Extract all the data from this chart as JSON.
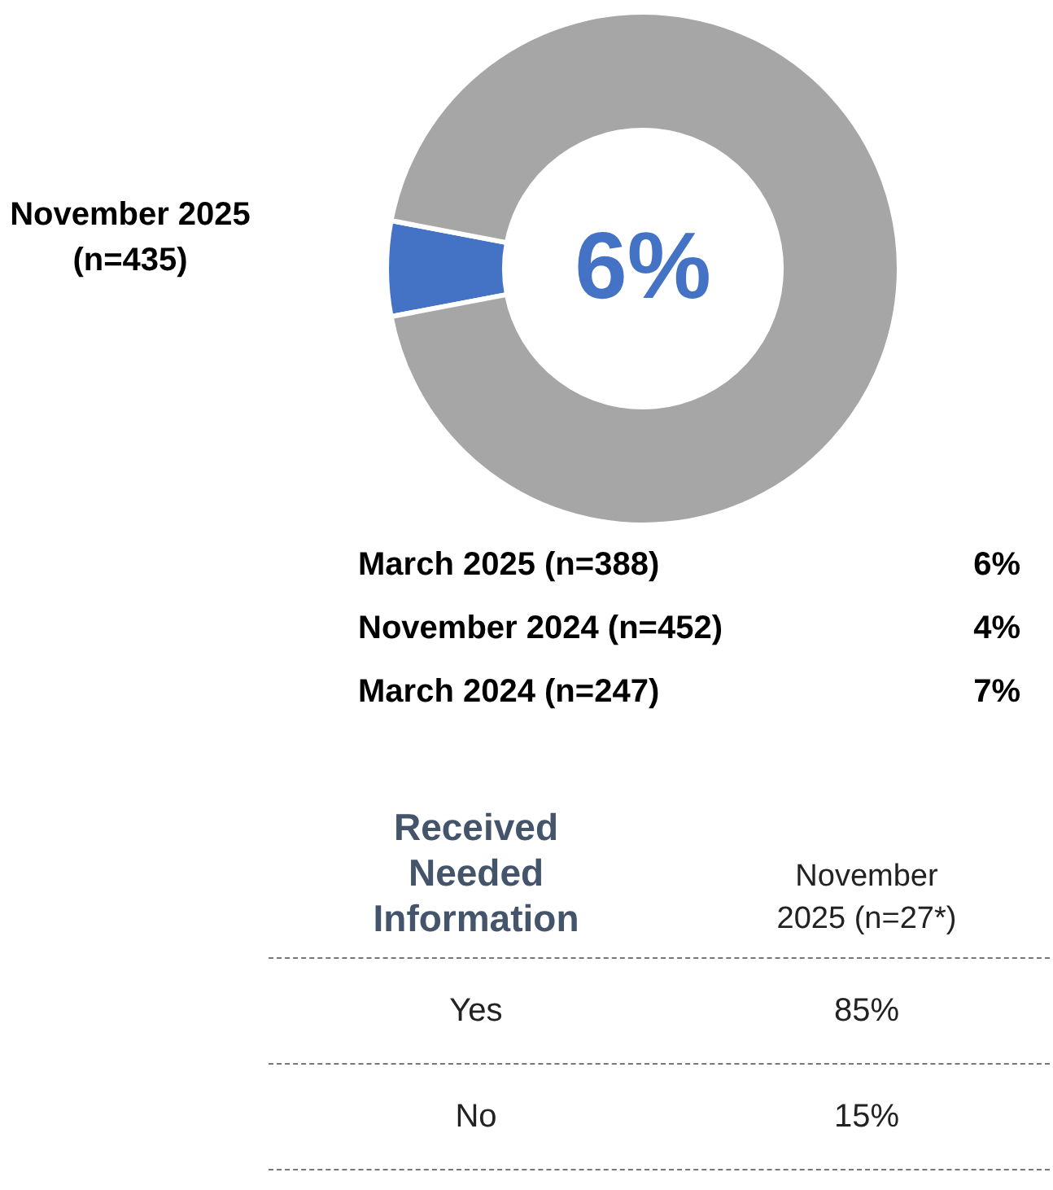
{
  "chart_data": [
    {
      "type": "donut",
      "title": "November 2025 (n=435)",
      "categories": [
        null,
        null
      ],
      "values": [
        6,
        94
      ],
      "colors": [
        "#4472c4",
        "#a6a6a6"
      ],
      "annotations": [
        "6%"
      ]
    },
    {
      "type": "other",
      "annotations": [
        "March 2025 (n=388)",
        "6%",
        "November 2024 (n=452)",
        "4%",
        "March 2024 (n=247)",
        "7%"
      ]
    },
    {
      "type": "other",
      "title": "Received Needed Information",
      "subtitle": "November 2025 (n=27*)",
      "annotations": [
        "Yes",
        "85%",
        "No",
        "15%"
      ]
    }
  ]
}
